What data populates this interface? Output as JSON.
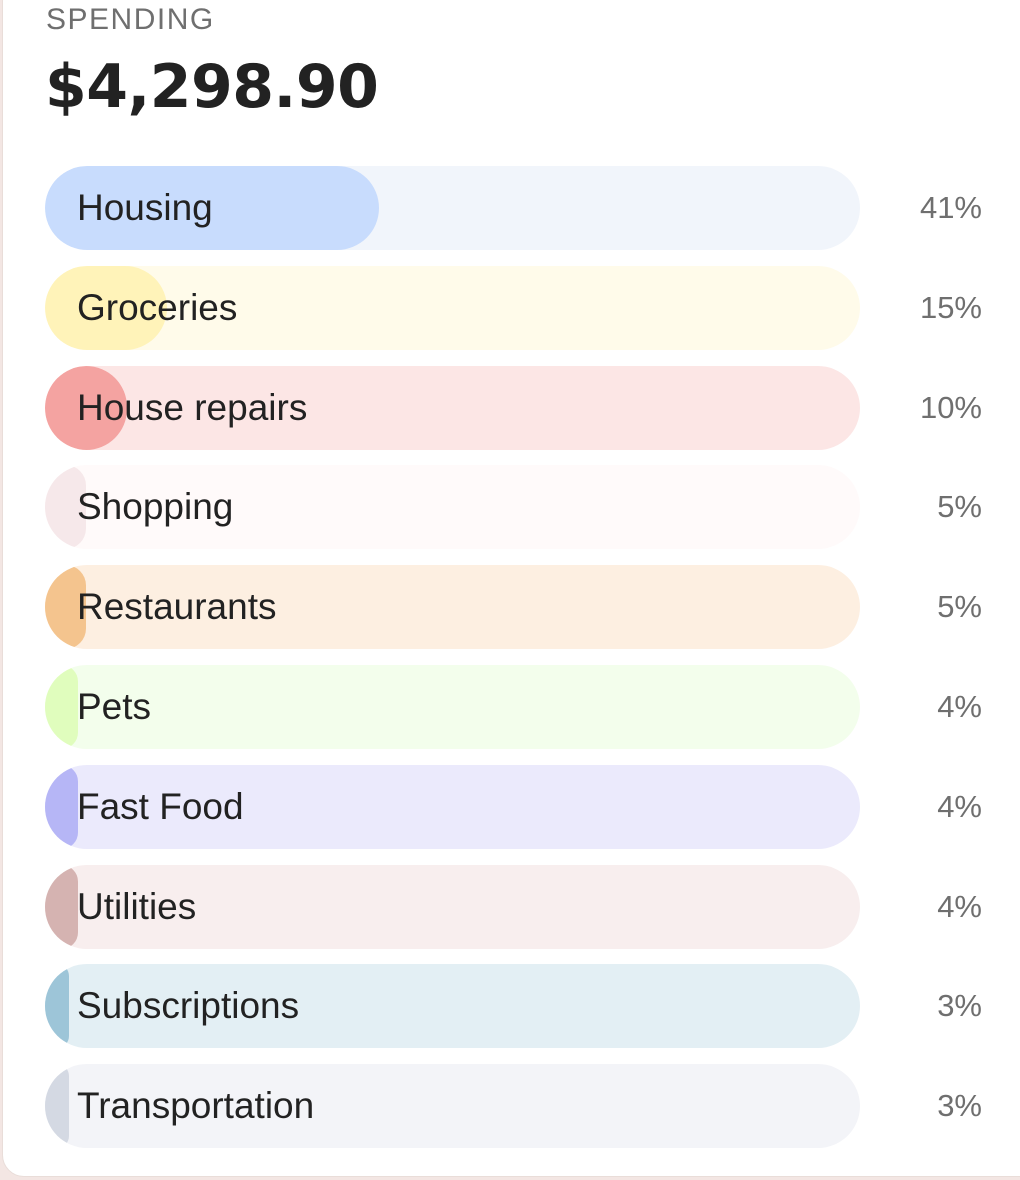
{
  "header": {
    "label": "SPENDING",
    "total": "$4,298.90"
  },
  "categories": [
    {
      "name": "Housing",
      "percent_label": "41%",
      "fill_fraction": 0.41,
      "fill_color": "#c8dcfd",
      "track_color": "#f1f5fb"
    },
    {
      "name": "Groceries",
      "percent_label": "15%",
      "fill_fraction": 0.15,
      "fill_color": "#fff3b9",
      "track_color": "#fffbea"
    },
    {
      "name": "House repairs",
      "percent_label": "10%",
      "fill_fraction": 0.1,
      "fill_color": "#f4a3a1",
      "track_color": "#fce6e5"
    },
    {
      "name": "Shopping",
      "percent_label": "5%",
      "fill_fraction": 0.05,
      "fill_color": "#f6e8ea",
      "track_color": "#fffafa"
    },
    {
      "name": "Restaurants",
      "percent_label": "5%",
      "fill_fraction": 0.05,
      "fill_color": "#f4c48e",
      "track_color": "#fdefe1"
    },
    {
      "name": "Pets",
      "percent_label": "4%",
      "fill_fraction": 0.04,
      "fill_color": "#e0fdbd",
      "track_color": "#f3feec"
    },
    {
      "name": "Fast Food",
      "percent_label": "4%",
      "fill_fraction": 0.04,
      "fill_color": "#b6b6f6",
      "track_color": "#ebeafc"
    },
    {
      "name": "Utilities",
      "percent_label": "4%",
      "fill_fraction": 0.04,
      "fill_color": "#d5b3b1",
      "track_color": "#f8eeee"
    },
    {
      "name": "Subscriptions",
      "percent_label": "3%",
      "fill_fraction": 0.03,
      "fill_color": "#9dc5d8",
      "track_color": "#e3eff4"
    },
    {
      "name": "Transportation",
      "percent_label": "3%",
      "fill_fraction": 0.03,
      "fill_color": "#d4d9e3",
      "track_color": "#f3f4f8"
    }
  ]
}
